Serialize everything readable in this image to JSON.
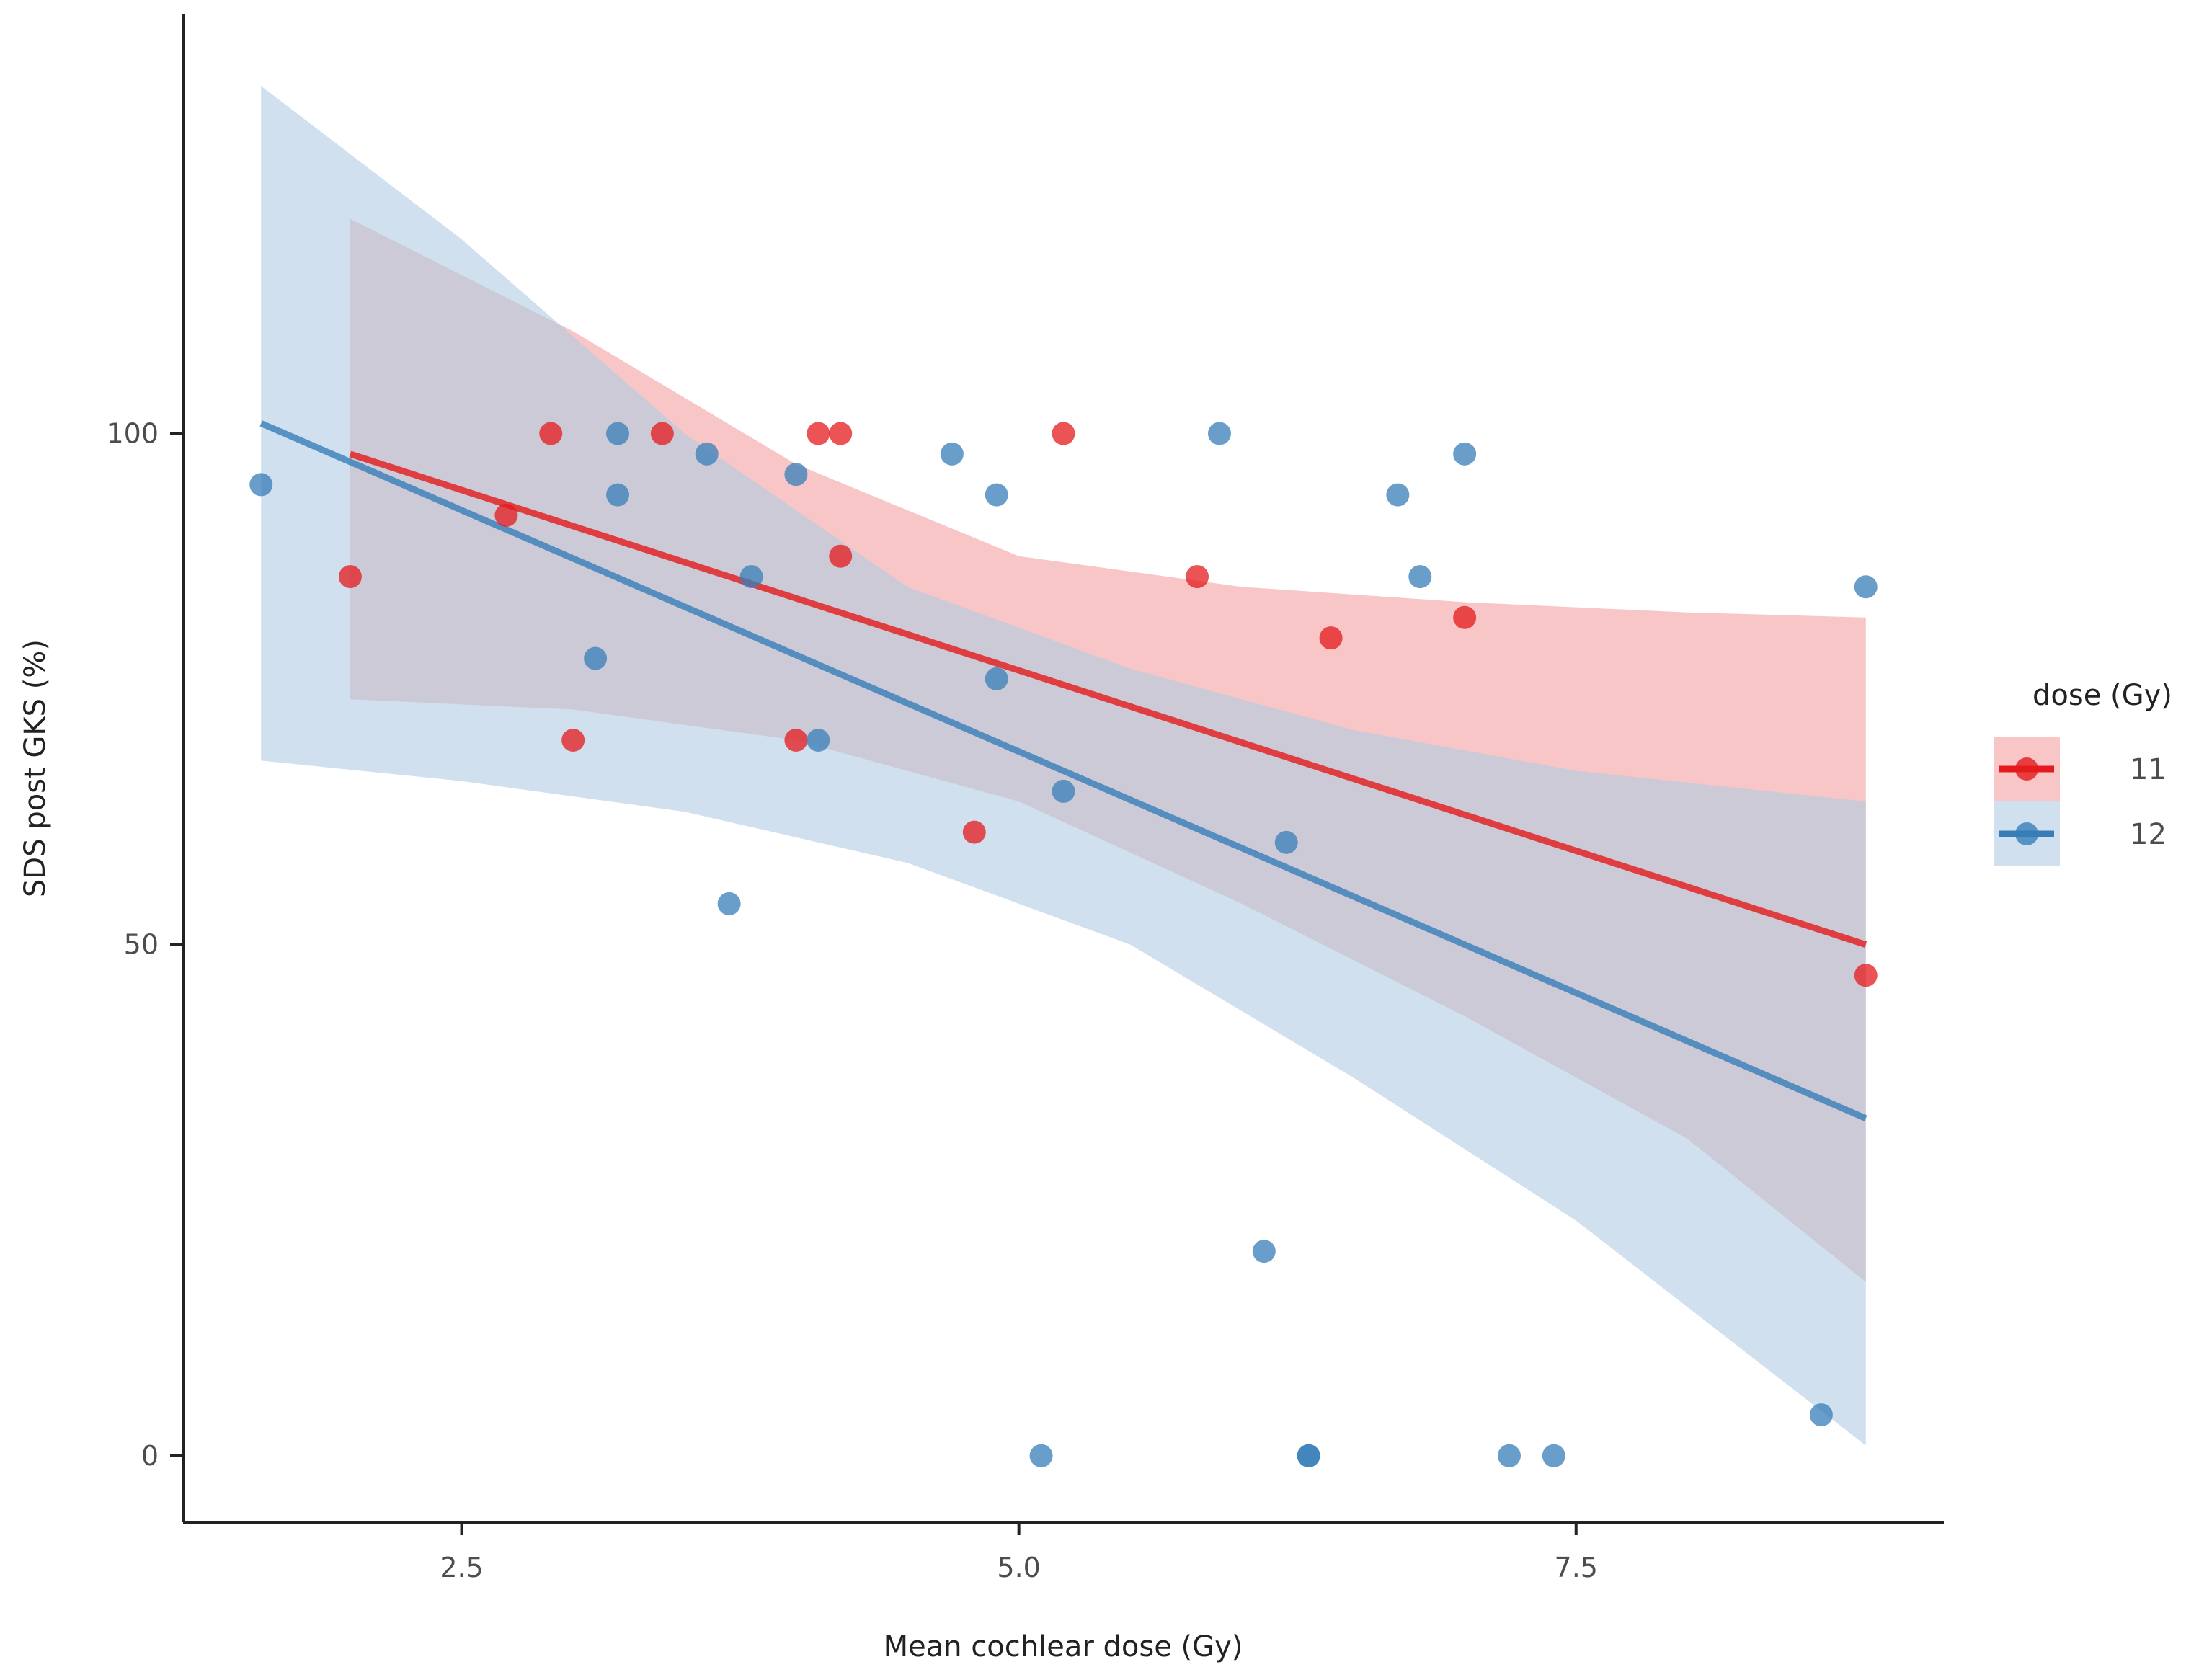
{
  "chart_data": {
    "type": "scatter",
    "title": "",
    "xlabel": "Mean cochlear dose (Gy)",
    "ylabel": "SDS post GKS (%)",
    "xlim": [
      1.25,
      9.15
    ],
    "ylim": [
      -6.5,
      141
    ],
    "xticks": [
      2.5,
      5.0,
      7.5
    ],
    "xtick_labels": [
      "2.5",
      "5.0",
      "7.5"
    ],
    "yticks": [
      0,
      50,
      100
    ],
    "ytick_labels": [
      "0",
      "50",
      "100"
    ],
    "grid": false,
    "legend": {
      "title": "dose (Gy)",
      "position": "right"
    },
    "series": [
      {
        "name": "11",
        "color": "#e41a1c",
        "ribbon_color": "#f4a3a3",
        "points": [
          [
            2.0,
            86
          ],
          [
            2.7,
            92
          ],
          [
            2.9,
            100
          ],
          [
            3.0,
            70
          ],
          [
            3.4,
            100
          ],
          [
            4.0,
            70
          ],
          [
            4.1,
            100
          ],
          [
            4.2,
            100
          ],
          [
            4.2,
            88
          ],
          [
            4.8,
            61
          ],
          [
            5.2,
            100
          ],
          [
            5.8,
            86
          ],
          [
            6.4,
            80
          ],
          [
            7.0,
            82
          ],
          [
            8.8,
            47
          ]
        ],
        "fit": {
          "x": [
            2.0,
            8.8
          ],
          "y": [
            98,
            50
          ]
        },
        "ci": [
          {
            "x": 2.0,
            "lo": 74,
            "hi": 121
          },
          {
            "x": 3.0,
            "lo": 73,
            "hi": 110
          },
          {
            "x": 4.0,
            "lo": 70,
            "hi": 97
          },
          {
            "x": 5.0,
            "lo": 64,
            "hi": 88
          },
          {
            "x": 6.0,
            "lo": 54,
            "hi": 85
          },
          {
            "x": 7.0,
            "lo": 43,
            "hi": 83.5
          },
          {
            "x": 8.0,
            "lo": 31,
            "hi": 82.5
          },
          {
            "x": 8.8,
            "lo": 17,
            "hi": 82
          }
        ]
      },
      {
        "name": "12",
        "color": "#377eb8",
        "ribbon_color": "#b3cde3",
        "points": [
          [
            1.6,
            95
          ],
          [
            3.1,
            78
          ],
          [
            3.2,
            100
          ],
          [
            3.2,
            94
          ],
          [
            3.6,
            98
          ],
          [
            3.7,
            54
          ],
          [
            3.8,
            86
          ],
          [
            4.0,
            96
          ],
          [
            4.1,
            70
          ],
          [
            4.7,
            98
          ],
          [
            4.9,
            94
          ],
          [
            4.9,
            76
          ],
          [
            5.1,
            0
          ],
          [
            5.2,
            65
          ],
          [
            5.9,
            100
          ],
          [
            6.1,
            20
          ],
          [
            6.2,
            60
          ],
          [
            6.3,
            0
          ],
          [
            6.3,
            0
          ],
          [
            6.7,
            94
          ],
          [
            6.8,
            86
          ],
          [
            7.0,
            98
          ],
          [
            7.2,
            0
          ],
          [
            7.4,
            0
          ],
          [
            8.6,
            4
          ],
          [
            8.8,
            85
          ]
        ],
        "fit": {
          "x": [
            1.6,
            8.8
          ],
          "y": [
            101,
            33
          ]
        },
        "ci": [
          {
            "x": 1.6,
            "lo": 68,
            "hi": 134
          },
          {
            "x": 2.5,
            "lo": 66,
            "hi": 119
          },
          {
            "x": 3.5,
            "lo": 63,
            "hi": 100
          },
          {
            "x": 4.5,
            "lo": 58,
            "hi": 85
          },
          {
            "x": 5.5,
            "lo": 50,
            "hi": 77
          },
          {
            "x": 6.5,
            "lo": 37,
            "hi": 71
          },
          {
            "x": 7.5,
            "lo": 23,
            "hi": 67
          },
          {
            "x": 8.8,
            "lo": 1,
            "hi": 64
          }
        ]
      }
    ]
  }
}
